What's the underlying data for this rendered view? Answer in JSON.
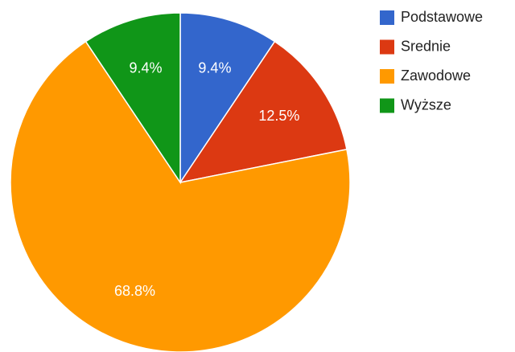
{
  "chart_data": {
    "type": "pie",
    "categories": [
      "Podstawowe",
      "Srednie",
      "Zawodowe",
      "Wyższe"
    ],
    "values": [
      9.4,
      12.5,
      68.8,
      9.4
    ],
    "value_labels": [
      "9.4%",
      "12.5%",
      "68.8%",
      "9.4%"
    ],
    "colors": [
      "#3366cc",
      "#dc3912",
      "#ff9900",
      "#109618"
    ],
    "legend": "right"
  }
}
